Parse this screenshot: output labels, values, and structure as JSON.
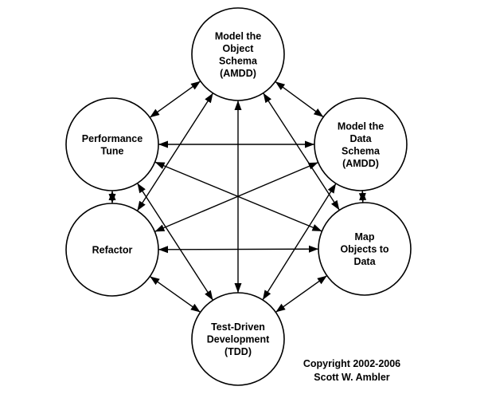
{
  "nodes": [
    {
      "id": "object-schema",
      "lines": [
        "Model the",
        "Object",
        "Schema",
        "(AMDD)"
      ]
    },
    {
      "id": "data-schema",
      "lines": [
        "Model the",
        "Data",
        "Schema",
        "(AMDD)"
      ]
    },
    {
      "id": "map-objects",
      "lines": [
        "Map",
        "Objects to",
        "Data"
      ]
    },
    {
      "id": "tdd",
      "lines": [
        "Test-Driven",
        "Development",
        "(TDD)"
      ]
    },
    {
      "id": "refactor",
      "lines": [
        "Refactor"
      ]
    },
    {
      "id": "performance-tune",
      "lines": [
        "Performance",
        "Tune"
      ]
    }
  ],
  "edges": "all-pairs-bidirectional",
  "copyright": {
    "line1": "Copyright 2002-2006",
    "line2": "Scott W. Ambler"
  }
}
